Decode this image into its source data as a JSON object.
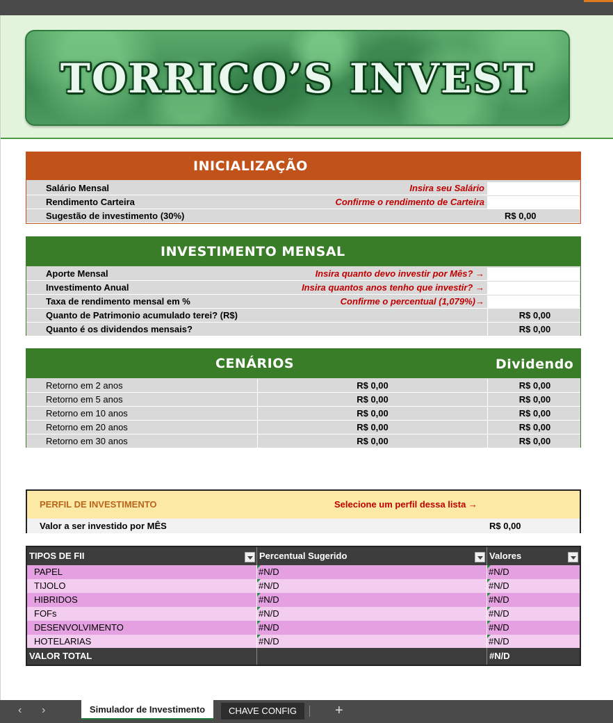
{
  "banner": {
    "title": "TORRICO’S INVEST"
  },
  "inicializacao": {
    "title": "INICIALIZAÇÃO",
    "rows": [
      {
        "label": "Salário Mensal",
        "hint": "Insira seu Salário",
        "value": ""
      },
      {
        "label": "Rendimento Carteira",
        "hint": "Confirme o rendimento de Carteira",
        "value": ""
      },
      {
        "label": "Sugestão de investimento (30%)",
        "hint": "",
        "value": "R$ 0,00"
      }
    ]
  },
  "investimento": {
    "title": "INVESTIMENTO MENSAL",
    "rows": [
      {
        "label": "Aporte Mensal",
        "hint": "Insira quanto devo investir por Mês? →",
        "value": ""
      },
      {
        "label": "Investimento Anual",
        "hint": "Insira quantos anos tenho que investir? →",
        "value": ""
      },
      {
        "label": "Taxa de rendimento mensal em %",
        "hint": "Confirme o percentual (1,079%)→",
        "value": ""
      },
      {
        "label": "Quanto de Patrimonio acumulado terei? (R$)",
        "hint": "",
        "value": "R$ 0,00"
      },
      {
        "label": "Quanto é os dividendos mensais?",
        "hint": "",
        "value": "R$ 0,00"
      }
    ]
  },
  "cenarios": {
    "title": "CENÁRIOS",
    "dividend_title": "Dividendo",
    "rows": [
      {
        "label": "Retorno em 2 anos",
        "value": "R$ 0,00",
        "dividend": "R$ 0,00"
      },
      {
        "label": "Retorno em 5 anos",
        "value": "R$ 0,00",
        "dividend": "R$ 0,00"
      },
      {
        "label": "Retorno em 10 anos",
        "value": "R$ 0,00",
        "dividend": "R$ 0,00"
      },
      {
        "label": "Retorno em 20 anos",
        "value": "R$ 0,00",
        "dividend": "R$ 0,00"
      },
      {
        "label": "Retorno em 30 anos",
        "value": "R$ 0,00",
        "dividend": "R$ 0,00"
      }
    ]
  },
  "perfil": {
    "label": "PERFIL DE INVESTIMENTO",
    "hint": "Selecione um perfil dessa lista →",
    "amount_label": "Valor a ser investido por MÊS",
    "amount_value": "R$ 0,00"
  },
  "fii": {
    "headers": [
      "TIPOS DE FII",
      "Percentual Sugerido",
      "Valores"
    ],
    "rows": [
      {
        "tipo": "PAPEL",
        "percentual": "#N/D",
        "valor": "#N/D"
      },
      {
        "tipo": "TIJOLO",
        "percentual": "#N/D",
        "valor": "#N/D"
      },
      {
        "tipo": "HIBRIDOS",
        "percentual": "#N/D",
        "valor": "#N/D"
      },
      {
        "tipo": "FOFs",
        "percentual": "#N/D",
        "valor": "#N/D"
      },
      {
        "tipo": "DESENVOLVIMENTO",
        "percentual": "#N/D",
        "valor": "#N/D"
      },
      {
        "tipo": "HOTELARIAS",
        "percentual": "#N/D",
        "valor": "#N/D"
      }
    ],
    "total_label": "VALOR TOTAL",
    "total_value": "#N/D",
    "row_colors": [
      "#e4a0e0",
      "#f2cdf0"
    ]
  },
  "tabs": {
    "active": "Simulador de Investimento",
    "other": "CHAVE CONFIG",
    "prev_icon": "chevron-left-icon",
    "next_icon": "chevron-right-icon",
    "add_icon": "plus-icon"
  },
  "colors": {
    "inicializacao": "#c0521a",
    "investimento": "#3a7d28",
    "perfil_bg": "#fde9a6",
    "hint_text": "#c00000"
  }
}
